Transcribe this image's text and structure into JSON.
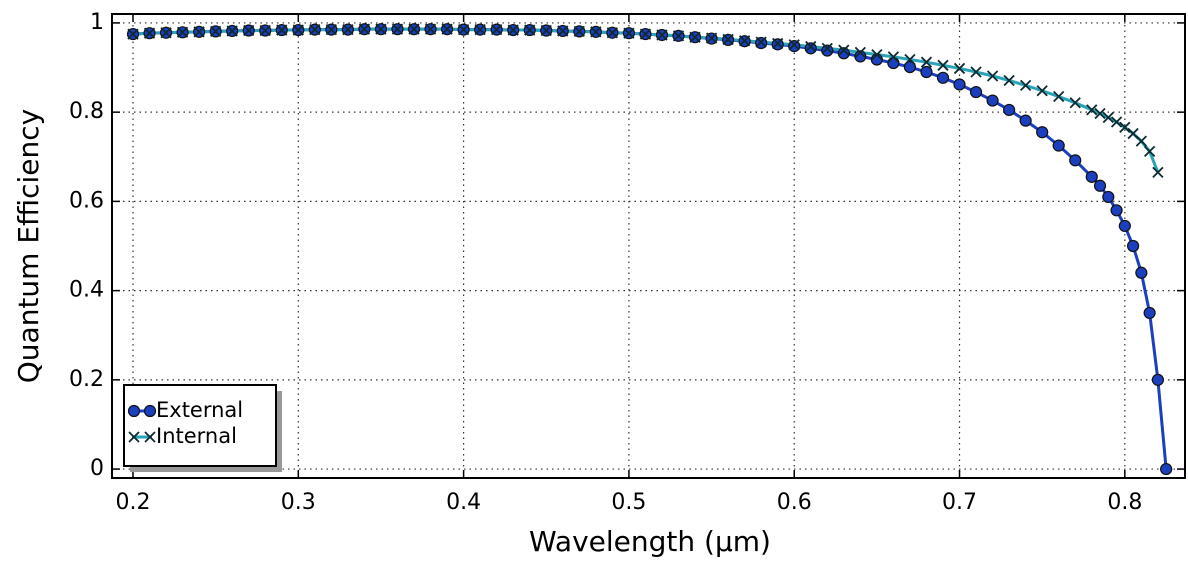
{
  "chart_data": {
    "type": "line",
    "xlabel": "Wavelength (μm)",
    "ylabel": "Quantum Efficiency",
    "x": [
      0.2,
      0.21,
      0.22,
      0.23,
      0.24,
      0.25,
      0.26,
      0.27,
      0.28,
      0.29,
      0.3,
      0.31,
      0.32,
      0.33,
      0.34,
      0.35,
      0.36,
      0.37,
      0.38,
      0.39,
      0.4,
      0.41,
      0.42,
      0.43,
      0.44,
      0.45,
      0.46,
      0.47,
      0.48,
      0.49,
      0.5,
      0.51,
      0.52,
      0.53,
      0.54,
      0.55,
      0.56,
      0.57,
      0.58,
      0.59,
      0.6,
      0.61,
      0.62,
      0.63,
      0.64,
      0.65,
      0.66,
      0.67,
      0.68,
      0.69,
      0.7,
      0.71,
      0.72,
      0.73,
      0.74,
      0.75,
      0.76,
      0.77,
      0.78,
      0.785,
      0.79,
      0.795,
      0.8,
      0.805,
      0.81,
      0.815,
      0.82,
      0.825
    ],
    "series": [
      {
        "name": "External",
        "color": "#1b3fbf",
        "marker": "circle",
        "values": [
          0.975,
          0.977,
          0.978,
          0.979,
          0.98,
          0.981,
          0.982,
          0.983,
          0.983,
          0.984,
          0.984,
          0.985,
          0.985,
          0.985,
          0.986,
          0.986,
          0.986,
          0.986,
          0.986,
          0.986,
          0.985,
          0.985,
          0.985,
          0.984,
          0.984,
          0.983,
          0.982,
          0.981,
          0.98,
          0.978,
          0.977,
          0.975,
          0.973,
          0.971,
          0.968,
          0.965,
          0.962,
          0.959,
          0.955,
          0.952,
          0.948,
          0.943,
          0.938,
          0.932,
          0.925,
          0.918,
          0.91,
          0.901,
          0.89,
          0.877,
          0.862,
          0.845,
          0.826,
          0.805,
          0.781,
          0.755,
          0.725,
          0.692,
          0.655,
          0.635,
          0.61,
          0.58,
          0.545,
          0.5,
          0.44,
          0.35,
          0.2,
          0
        ]
      },
      {
        "name": "Internal",
        "color": "#2aa3b8",
        "marker": "x",
        "values": [
          0.975,
          0.977,
          0.978,
          0.979,
          0.98,
          0.981,
          0.982,
          0.983,
          0.983,
          0.984,
          0.984,
          0.985,
          0.985,
          0.985,
          0.986,
          0.986,
          0.986,
          0.986,
          0.986,
          0.986,
          0.985,
          0.985,
          0.985,
          0.984,
          0.984,
          0.983,
          0.982,
          0.981,
          0.98,
          0.978,
          0.977,
          0.975,
          0.973,
          0.971,
          0.968,
          0.966,
          0.963,
          0.96,
          0.957,
          0.954,
          0.951,
          0.947,
          0.943,
          0.939,
          0.934,
          0.929,
          0.924,
          0.918,
          0.912,
          0.905,
          0.898,
          0.89,
          0.881,
          0.871,
          0.86,
          0.848,
          0.835,
          0.821,
          0.805,
          0.797,
          0.788,
          0.778,
          0.766,
          0.752,
          0.735,
          0.712,
          0.665,
          null
        ]
      }
    ],
    "xlim": [
      0.1873,
      0.8364
    ],
    "ylim": [
      -0.02,
      1.02
    ],
    "xticks": [
      0.2,
      0.3,
      0.4,
      0.5,
      0.6,
      0.7,
      0.8
    ],
    "yticks": [
      0,
      0.2,
      0.4,
      0.6,
      0.8,
      1
    ],
    "grid": true,
    "legend": "lower left"
  }
}
